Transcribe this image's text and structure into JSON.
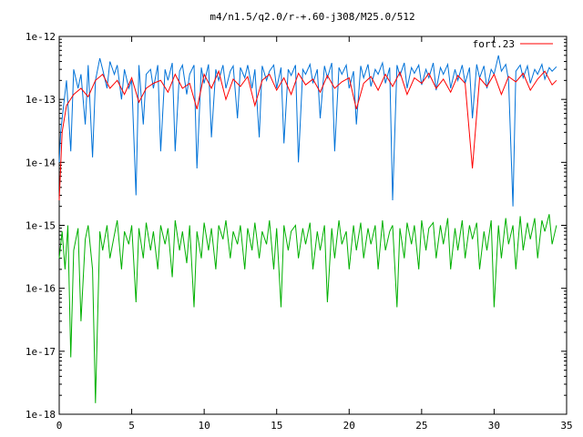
{
  "chart_data": {
    "type": "line",
    "title": "m4/n1.5/q2.0/r-+.60-j308/M25.0/512",
    "xlabel": "",
    "ylabel": "",
    "x_range": [
      0,
      35
    ],
    "y_range": [
      1e-18,
      1e-12
    ],
    "y_scale": "log",
    "grid": false,
    "legend_position": "top-right",
    "x_ticks": [
      0,
      5,
      10,
      15,
      20,
      25,
      30,
      35
    ],
    "x_tick_labels": [
      "0",
      "5",
      "10",
      "15",
      "20",
      "25",
      "30",
      "35"
    ],
    "y_ticks": [
      1e-18,
      1e-17,
      1e-16,
      1e-15,
      1e-14,
      1e-13,
      1e-12
    ],
    "y_tick_labels": [
      "1e-18",
      "1e-17",
      "1e-16",
      "1e-15",
      "1e-14",
      "1e-13",
      "1e-12"
    ],
    "series": [
      {
        "name": "fort.23",
        "color": "#ff0000",
        "x": [
          0.0,
          0.2,
          0.5,
          1.0,
          1.5,
          2.0,
          2.5,
          3.0,
          3.5,
          4.0,
          4.5,
          5.0,
          5.5,
          6.0,
          6.5,
          7.0,
          7.5,
          8.0,
          8.5,
          9.0,
          9.5,
          10.0,
          10.5,
          11.0,
          11.5,
          12.0,
          12.5,
          13.0,
          13.5,
          14.0,
          14.5,
          15.0,
          15.5,
          16.0,
          16.5,
          17.0,
          17.5,
          18.0,
          18.5,
          19.0,
          19.5,
          20.0,
          20.5,
          21.0,
          21.5,
          22.0,
          22.5,
          23.0,
          23.5,
          24.0,
          24.5,
          25.0,
          25.5,
          26.0,
          26.5,
          27.0,
          27.5,
          28.0,
          28.5,
          29.0,
          29.5,
          30.0,
          30.5,
          31.0,
          31.5,
          32.0,
          32.5,
          33.0,
          33.5,
          34.0,
          34.3
        ],
        "y": [
          2.5e-15,
          3e-14,
          8e-14,
          1.2e-13,
          1.5e-13,
          1.1e-13,
          2e-13,
          2.5e-13,
          1.5e-13,
          2e-13,
          1.2e-13,
          2.2e-13,
          9e-14,
          1.5e-13,
          1.8e-13,
          2e-13,
          1.3e-13,
          2.5e-13,
          1.5e-13,
          1.8e-13,
          7e-14,
          2.5e-13,
          1.5e-13,
          2.8e-13,
          1e-13,
          2.1e-13,
          1.6e-13,
          2.3e-13,
          8e-14,
          2e-13,
          2.5e-13,
          1.4e-13,
          2.2e-13,
          1.2e-13,
          2.6e-13,
          1.7e-13,
          2.1e-13,
          1.3e-13,
          2.4e-13,
          1.5e-13,
          1.9e-13,
          2.2e-13,
          7e-14,
          1.8e-13,
          2.3e-13,
          1.4e-13,
          2.5e-13,
          1.6e-13,
          2.7e-13,
          1.2e-13,
          2.2e-13,
          1.8e-13,
          2.6e-13,
          1.5e-13,
          2.1e-13,
          1.3e-13,
          2.4e-13,
          1.8e-13,
          8e-15,
          2.2e-13,
          1.6e-13,
          2.5e-13,
          1.2e-13,
          2.3e-13,
          1.9e-13,
          2.6e-13,
          1.4e-13,
          2.1e-13,
          2.8e-13,
          1.7e-13,
          2e-13
        ]
      },
      {
        "name": "",
        "color": "#0072d8",
        "x": [
          0.0,
          0.1,
          0.3,
          0.5,
          0.8,
          1.0,
          1.3,
          1.5,
          1.8,
          2.0,
          2.3,
          2.5,
          2.8,
          3.0,
          3.3,
          3.5,
          3.8,
          4.0,
          4.3,
          4.5,
          4.8,
          5.0,
          5.3,
          5.5,
          5.8,
          6.0,
          6.3,
          6.5,
          6.8,
          7.0,
          7.3,
          7.5,
          7.8,
          8.0,
          8.3,
          8.5,
          8.8,
          9.0,
          9.3,
          9.5,
          9.8,
          10.0,
          10.3,
          10.5,
          10.8,
          11.0,
          11.3,
          11.5,
          11.8,
          12.0,
          12.3,
          12.5,
          12.8,
          13.0,
          13.3,
          13.5,
          13.8,
          14.0,
          14.3,
          14.5,
          14.8,
          15.0,
          15.3,
          15.5,
          15.8,
          16.0,
          16.3,
          16.5,
          16.8,
          17.0,
          17.3,
          17.5,
          17.8,
          18.0,
          18.3,
          18.5,
          18.8,
          19.0,
          19.3,
          19.5,
          19.8,
          20.0,
          20.3,
          20.5,
          20.8,
          21.0,
          21.3,
          21.5,
          21.8,
          22.0,
          22.3,
          22.5,
          22.8,
          23.0,
          23.3,
          23.5,
          23.8,
          24.0,
          24.3,
          24.5,
          24.8,
          25.0,
          25.3,
          25.5,
          25.8,
          26.0,
          26.3,
          26.5,
          26.8,
          27.0,
          27.3,
          27.5,
          27.8,
          28.0,
          28.3,
          28.5,
          28.8,
          29.0,
          29.3,
          29.5,
          29.8,
          30.0,
          30.3,
          30.5,
          30.8,
          31.0,
          31.3,
          31.5,
          31.8,
          32.0,
          32.3,
          32.5,
          32.8,
          33.0,
          33.3,
          33.5,
          33.8,
          34.0,
          34.3
        ],
        "y": [
          1e-14,
          3e-14,
          8e-14,
          2e-13,
          1.5e-14,
          3e-13,
          1.5e-13,
          2.5e-13,
          4e-14,
          3.5e-13,
          1.2e-14,
          2e-13,
          4.5e-13,
          3e-13,
          1.5e-13,
          4e-13,
          2.5e-13,
          3.5e-13,
          1e-13,
          3e-13,
          1.5e-13,
          2e-13,
          3e-15,
          3.5e-13,
          4e-14,
          2.5e-13,
          3e-13,
          1.5e-13,
          3.5e-13,
          1.5e-14,
          3e-13,
          2e-13,
          3.8e-13,
          1.5e-14,
          2.8e-13,
          3.5e-13,
          1.2e-13,
          2.5e-13,
          3.5e-13,
          8e-15,
          3.2e-13,
          1.8e-13,
          3.6e-13,
          2.5e-14,
          3e-13,
          2e-13,
          3.5e-13,
          1.5e-13,
          2.8e-13,
          3.4e-13,
          5e-14,
          3.2e-13,
          2.2e-13,
          3.5e-13,
          1.5e-13,
          3e-13,
          2.5e-14,
          3.4e-13,
          2e-13,
          2.8e-13,
          3.5e-13,
          1.5e-13,
          3.2e-13,
          2e-14,
          3e-13,
          2.4e-13,
          3.5e-13,
          1e-14,
          3e-13,
          2.5e-13,
          3.6e-13,
          1.8e-13,
          3e-13,
          5e-14,
          3.4e-13,
          2.2e-13,
          3.8e-13,
          1.5e-14,
          3.2e-13,
          2.5e-13,
          3.5e-13,
          1.5e-13,
          2.8e-13,
          4e-14,
          3.4e-13,
          2.2e-13,
          3.6e-13,
          1.6e-13,
          3e-13,
          2.5e-13,
          3.8e-13,
          1.8e-13,
          3.2e-13,
          2.5e-15,
          3.5e-13,
          2.4e-13,
          3.8e-13,
          1.5e-13,
          3.2e-13,
          2.6e-13,
          3.5e-13,
          1.7e-13,
          3e-13,
          2.2e-13,
          3.8e-13,
          1.4e-13,
          3.2e-13,
          2.5e-13,
          3.6e-13,
          1.5e-13,
          3e-13,
          2e-13,
          3.5e-13,
          1.8e-13,
          3.2e-13,
          5e-14,
          3.6e-13,
          2.2e-13,
          3.4e-13,
          1.5e-13,
          3e-13,
          2.5e-13,
          5e-13,
          2.8e-13,
          3.6e-13,
          2e-13,
          2e-15,
          2.8e-13,
          3.5e-13,
          2.2e-13,
          3.4e-13,
          1.8e-13,
          3e-13,
          2.5e-13,
          3.6e-13,
          2.1e-13,
          3.2e-13,
          2.8e-13,
          3.3e-13
        ]
      },
      {
        "name": "",
        "color": "#00b000",
        "x": [
          0.0,
          0.2,
          0.4,
          0.6,
          0.8,
          1.0,
          1.3,
          1.5,
          1.8,
          2.0,
          2.3,
          2.5,
          2.8,
          3.0,
          3.3,
          3.5,
          3.8,
          4.0,
          4.3,
          4.5,
          4.8,
          5.0,
          5.3,
          5.5,
          5.8,
          6.0,
          6.3,
          6.5,
          6.8,
          7.0,
          7.3,
          7.5,
          7.8,
          8.0,
          8.3,
          8.5,
          8.8,
          9.0,
          9.3,
          9.5,
          9.8,
          10.0,
          10.3,
          10.5,
          10.8,
          11.0,
          11.3,
          11.5,
          11.8,
          12.0,
          12.3,
          12.5,
          12.8,
          13.0,
          13.3,
          13.5,
          13.8,
          14.0,
          14.3,
          14.5,
          14.8,
          15.0,
          15.3,
          15.5,
          15.8,
          16.0,
          16.3,
          16.5,
          16.8,
          17.0,
          17.3,
          17.5,
          17.8,
          18.0,
          18.3,
          18.5,
          18.8,
          19.0,
          19.3,
          19.5,
          19.8,
          20.0,
          20.3,
          20.5,
          20.8,
          21.0,
          21.3,
          21.5,
          21.8,
          22.0,
          22.3,
          22.5,
          22.8,
          23.0,
          23.3,
          23.5,
          23.8,
          24.0,
          24.3,
          24.5,
          24.8,
          25.0,
          25.3,
          25.5,
          25.8,
          26.0,
          26.3,
          26.5,
          26.8,
          27.0,
          27.3,
          27.5,
          27.8,
          28.0,
          28.3,
          28.5,
          28.8,
          29.0,
          29.3,
          29.5,
          29.8,
          30.0,
          30.3,
          30.5,
          30.8,
          31.0,
          31.3,
          31.5,
          31.8,
          32.0,
          32.3,
          32.5,
          32.8,
          33.0,
          33.3,
          33.5,
          33.8,
          34.0,
          34.3
        ],
        "y": [
          3e-16,
          8e-16,
          2e-16,
          1e-15,
          8e-18,
          4e-16,
          9e-16,
          3e-17,
          6e-16,
          1e-15,
          2e-16,
          1.5e-18,
          8e-16,
          4e-16,
          1e-15,
          3e-16,
          7e-16,
          1.2e-15,
          2e-16,
          8e-16,
          5e-16,
          1e-15,
          6e-17,
          9e-16,
          3e-16,
          1.1e-15,
          4e-16,
          8e-16,
          2e-16,
          1e-15,
          5e-16,
          9e-16,
          1.5e-16,
          1.2e-15,
          4e-16,
          8e-16,
          2.5e-16,
          1e-15,
          5e-17,
          8e-16,
          3e-16,
          1.1e-15,
          4e-16,
          9e-16,
          2e-16,
          1e-15,
          6e-16,
          1.2e-15,
          3e-16,
          8e-16,
          5e-16,
          1e-15,
          2e-16,
          9e-16,
          4e-16,
          1.1e-15,
          3e-16,
          8e-16,
          5e-16,
          1.2e-15,
          2e-16,
          9e-16,
          5e-17,
          1e-15,
          4e-16,
          8e-16,
          1e-15,
          3e-16,
          9e-16,
          5e-16,
          1.1e-15,
          2e-16,
          8e-16,
          4e-16,
          1e-15,
          6e-17,
          9e-16,
          3e-16,
          1.2e-15,
          5e-16,
          8e-16,
          2e-16,
          1e-15,
          4e-16,
          1.1e-15,
          3e-16,
          9e-16,
          5e-16,
          1e-15,
          2e-16,
          1.2e-15,
          4e-16,
          8e-16,
          1e-15,
          5e-17,
          9e-16,
          3e-16,
          1.1e-15,
          5e-16,
          1e-15,
          2e-16,
          1.2e-15,
          4e-16,
          9e-16,
          1.1e-15,
          3e-16,
          1e-15,
          5e-16,
          1.3e-15,
          2e-16,
          9e-16,
          4e-16,
          1.2e-15,
          3e-16,
          1e-15,
          6e-16,
          1.1e-15,
          2e-16,
          8e-16,
          4e-16,
          1.2e-15,
          5e-17,
          1e-15,
          3e-16,
          1.3e-15,
          5e-16,
          1e-15,
          2e-16,
          1.4e-15,
          4e-16,
          1.1e-15,
          6e-16,
          1.3e-15,
          3e-16,
          1.2e-15,
          8e-16,
          1.5e-15,
          5e-16,
          1e-15
        ]
      }
    ]
  }
}
